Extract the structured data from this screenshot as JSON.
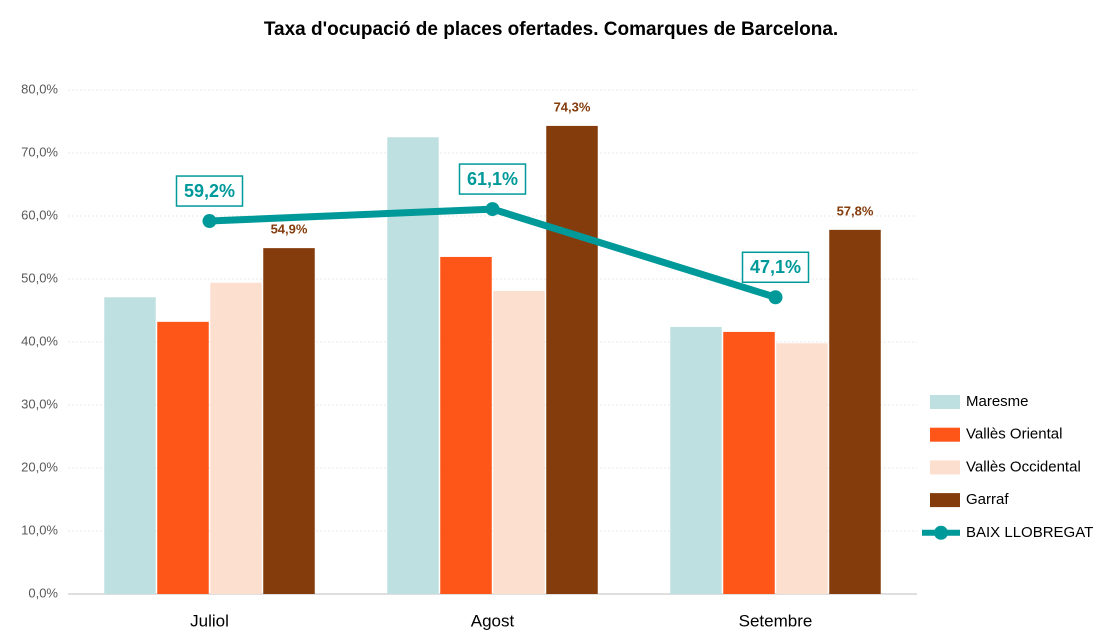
{
  "chart_data": {
    "type": "bar_line",
    "title": "Taxa d'ocupació de places ofertades. Comarques de Barcelona.",
    "categories": [
      "Juliol",
      "Agost",
      "Setembre"
    ],
    "series": [
      {
        "name": "Maresme",
        "color": "#bfe0e0",
        "values": [
          47.1,
          72.5,
          42.4
        ]
      },
      {
        "name": "Vallès Oriental",
        "color": "#fe5618",
        "values": [
          43.2,
          53.5,
          41.6
        ]
      },
      {
        "name": "Vallès Occidental",
        "color": "#fddfd0",
        "values": [
          49.4,
          48.1,
          39.8
        ]
      },
      {
        "name": "Garraf",
        "color": "#843c0c",
        "values": [
          54.9,
          74.3,
          57.8
        ],
        "value_labels": [
          "54,9%",
          "74,3%",
          "57,8%"
        ]
      },
      {
        "name": "BAIX LLOBREGAT",
        "type": "line",
        "color": "#00999a",
        "values": [
          59.2,
          61.1,
          47.1
        ],
        "value_labels": [
          "59,2%",
          "61,1%",
          "47,1%"
        ]
      }
    ],
    "ylim": [
      0,
      80
    ],
    "yticks": [
      {
        "value": 0,
        "label": "0,0%"
      },
      {
        "value": 10,
        "label": "10,0%"
      },
      {
        "value": 20,
        "label": "20,0%"
      },
      {
        "value": 30,
        "label": "30,0%"
      },
      {
        "value": 40,
        "label": "40,0%"
      },
      {
        "value": 50,
        "label": "50,0%"
      },
      {
        "value": 60,
        "label": "60,0%"
      },
      {
        "value": 70,
        "label": "70,0%"
      },
      {
        "value": 80,
        "label": "80,0%"
      }
    ],
    "grid": true,
    "legend": "right"
  }
}
